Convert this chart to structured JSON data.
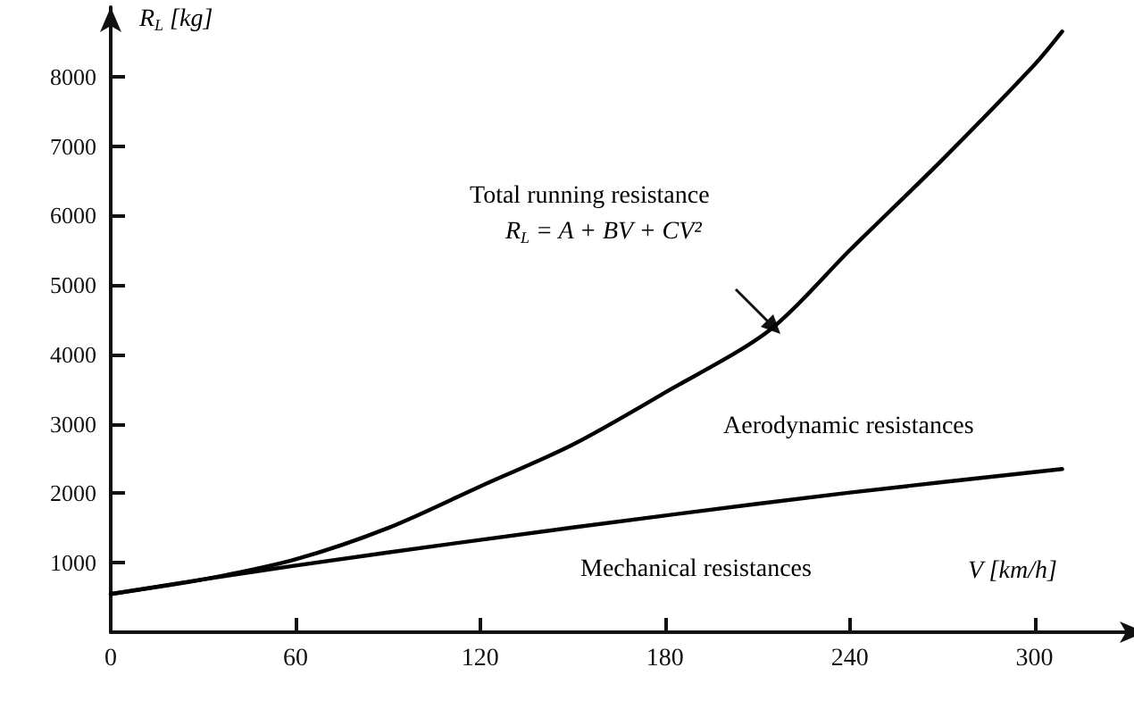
{
  "chart_data": {
    "type": "line",
    "xlabel": "V [km/h]",
    "ylabel": "R$_{L}$ [kg]",
    "xlim": [
      0,
      330
    ],
    "xticks": [
      0,
      60,
      120,
      180,
      240,
      300
    ],
    "ylim": [
      0,
      9000
    ],
    "yticks": [
      1000,
      2000,
      3000,
      4000,
      5000,
      6000,
      7000,
      8000
    ],
    "series": [
      {
        "color": "#000000",
        "x": [
          0,
          30,
          60,
          90,
          120,
          150,
          180,
          214,
          240,
          270,
          300,
          309
        ],
        "values": [
          550,
          760,
          1050,
          1500,
          2100,
          2700,
          3450,
          4350,
          5500,
          6800,
          8170,
          8650
        ]
      },
      {
        "color": "#000000",
        "x": [
          0,
          30,
          60,
          120,
          180,
          240,
          309
        ],
        "values": [
          550,
          760,
          960,
          1330,
          1680,
          2010,
          2350
        ]
      }
    ],
    "annotations": [
      "Total running resistance",
      "R$_{L}$ = A + BV + CV²",
      "Aerodynamic resistances",
      "Mechanical resistances"
    ],
    "grid": false,
    "marker": "none",
    "line_style": "solid"
  }
}
